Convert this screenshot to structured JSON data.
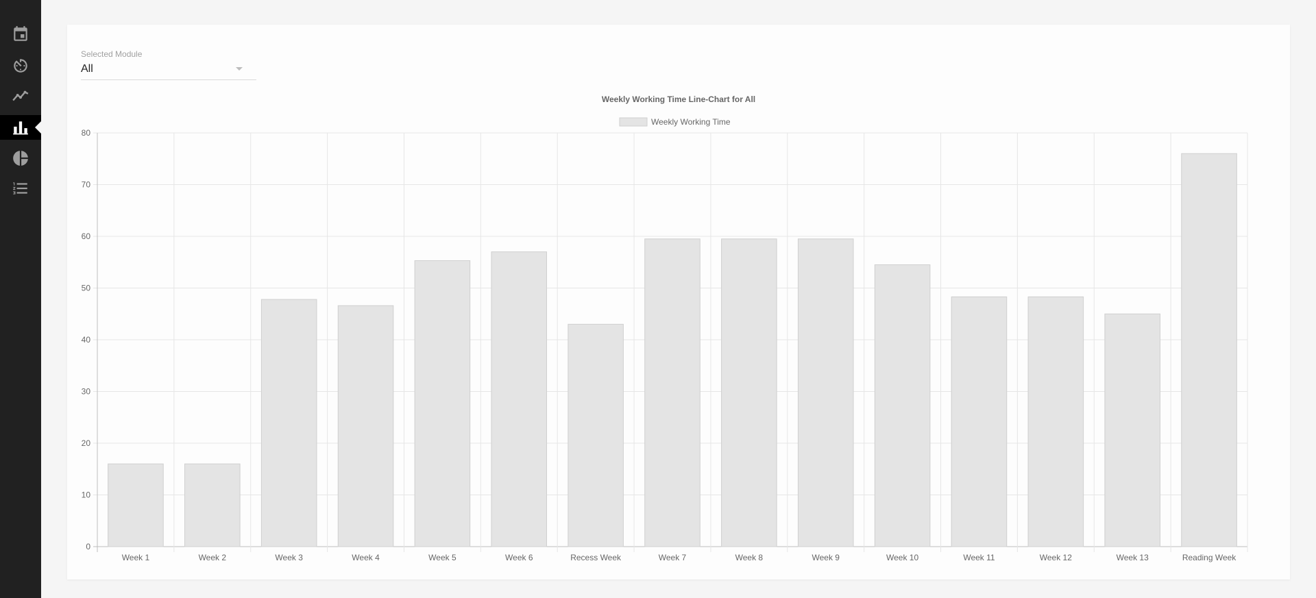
{
  "sidebar": {
    "items": [
      {
        "icon": "calendar-icon",
        "active": false
      },
      {
        "icon": "timer-icon",
        "active": false
      },
      {
        "icon": "line-chart-icon",
        "active": false
      },
      {
        "icon": "bar-chart-icon",
        "active": true
      },
      {
        "icon": "pie-chart-icon",
        "active": false
      },
      {
        "icon": "numbered-list-icon",
        "active": false
      }
    ]
  },
  "module_select": {
    "label": "Selected Module",
    "value": "All"
  },
  "colors": {
    "sidebar_bg": "#212121",
    "bar_fill": "#e4e4e4",
    "bar_border": "#cfcfcf"
  },
  "chart_data": {
    "type": "bar",
    "title": "Weekly Working Time Line-Chart for All",
    "legend": [
      "Weekly Working Time"
    ],
    "legend_position": "top-center",
    "grid": true,
    "ylim": [
      0,
      80
    ],
    "yticks": [
      0,
      10,
      20,
      30,
      40,
      50,
      60,
      70,
      80
    ],
    "categories": [
      "Week 1",
      "Week 2",
      "Week 3",
      "Week 4",
      "Week 5",
      "Week 6",
      "Recess Week",
      "Week 7",
      "Week 8",
      "Week 9",
      "Week 10",
      "Week 11",
      "Week 12",
      "Week 13",
      "Reading Week"
    ],
    "series": [
      {
        "name": "Weekly Working Time",
        "values": [
          16,
          16,
          47.8,
          46.6,
          55.3,
          57,
          43,
          59.5,
          59.5,
          59.5,
          54.5,
          48.3,
          48.3,
          45,
          76
        ]
      }
    ]
  }
}
